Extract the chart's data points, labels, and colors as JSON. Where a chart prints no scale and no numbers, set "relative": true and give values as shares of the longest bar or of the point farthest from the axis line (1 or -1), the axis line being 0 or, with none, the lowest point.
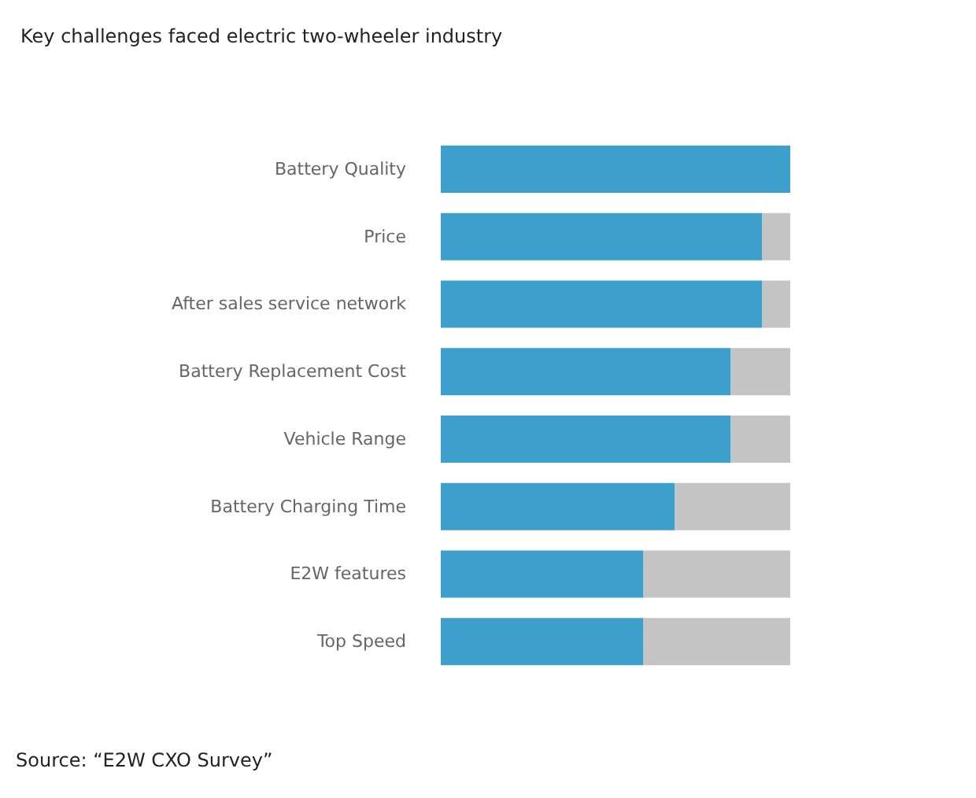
{
  "chart_data": {
    "type": "bar",
    "title": "Key challenges faced electric two-wheeler industry",
    "orientation": "horizontal",
    "stacked": true,
    "relative": true,
    "categories": [
      "Battery Quality",
      "Price",
      "After sales service network",
      "Battery Replacement Cost",
      "Vehicle Range",
      "Battery Charging Time",
      "E2W features",
      "Top Speed"
    ],
    "series": [
      {
        "color": "#3d9fcb",
        "values": [
          1,
          0.92,
          0.92,
          0.83,
          0.83,
          0.67,
          0.58,
          0.58
        ]
      },
      {
        "color": "#c4c4c4",
        "values": [
          0,
          0.08,
          0.08,
          0.17,
          0.17,
          0.33,
          0.42,
          0.42
        ]
      }
    ],
    "annotations": [
      "Source: “E2W CXO Survey”"
    ]
  }
}
